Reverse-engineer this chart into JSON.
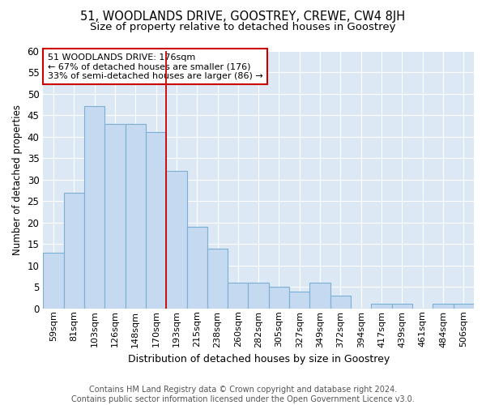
{
  "title1": "51, WOODLANDS DRIVE, GOOSTREY, CREWE, CW4 8JH",
  "title2": "Size of property relative to detached houses in Goostrey",
  "xlabel": "Distribution of detached houses by size in Goostrey",
  "ylabel": "Number of detached properties",
  "categories": [
    "59sqm",
    "81sqm",
    "103sqm",
    "126sqm",
    "148sqm",
    "170sqm",
    "193sqm",
    "215sqm",
    "238sqm",
    "260sqm",
    "282sqm",
    "305sqm",
    "327sqm",
    "349sqm",
    "372sqm",
    "394sqm",
    "417sqm",
    "439sqm",
    "461sqm",
    "484sqm",
    "506sqm"
  ],
  "values": [
    13,
    27,
    47,
    43,
    43,
    41,
    32,
    19,
    14,
    6,
    6,
    5,
    4,
    6,
    3,
    0,
    1,
    1,
    0,
    1,
    1
  ],
  "bar_color": "#c5d9f0",
  "bar_edge_color": "#7bafd4",
  "vline_x": 5.5,
  "vline_color": "#cc0000",
  "annotation_text": "51 WOODLANDS DRIVE: 176sqm\n← 67% of detached houses are smaller (176)\n33% of semi-detached houses are larger (86) →",
  "annotation_box_color": "#ffffff",
  "annotation_box_edge": "#cc0000",
  "ylim": [
    0,
    60
  ],
  "yticks": [
    0,
    5,
    10,
    15,
    20,
    25,
    30,
    35,
    40,
    45,
    50,
    55,
    60
  ],
  "footnote": "Contains HM Land Registry data © Crown copyright and database right 2024.\nContains public sector information licensed under the Open Government Licence v3.0.",
  "fig_bg_color": "#ffffff",
  "plot_bg_color": "#dce9f5",
  "grid_color": "#ffffff",
  "title1_fontsize": 10.5,
  "title2_fontsize": 9.5,
  "xlabel_fontsize": 9,
  "ylabel_fontsize": 8.5,
  "footnote_fontsize": 7,
  "tick_fontsize": 8.5,
  "xtick_fontsize": 8
}
